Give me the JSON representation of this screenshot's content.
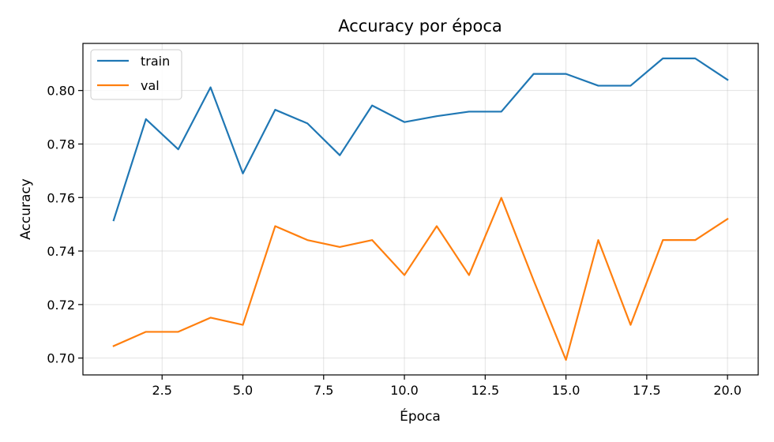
{
  "chart_data": {
    "type": "line",
    "title": "Accuracy por época",
    "xlabel": "Época",
    "ylabel": "Accuracy",
    "x": [
      1,
      2,
      3,
      4,
      5,
      6,
      7,
      8,
      9,
      10,
      11,
      12,
      13,
      14,
      15,
      16,
      17,
      18,
      19,
      20
    ],
    "series": [
      {
        "name": "train",
        "color": "#1f77b4",
        "values": [
          0.7515,
          0.7893,
          0.778,
          0.8012,
          0.769,
          0.7928,
          0.7877,
          0.7758,
          0.7944,
          0.7882,
          0.7904,
          0.7921,
          0.7921,
          0.8062,
          0.8062,
          0.8018,
          0.8018,
          0.812,
          0.812,
          0.804
        ]
      },
      {
        "name": "val",
        "color": "#ff7f0e",
        "values": [
          0.7045,
          0.7098,
          0.7098,
          0.7151,
          0.7124,
          0.7493,
          0.7441,
          0.7415,
          0.7441,
          0.731,
          0.7493,
          0.731,
          0.7599,
          0.729,
          0.6993,
          0.7441,
          0.7124,
          0.7441,
          0.7441,
          0.752
        ]
      }
    ],
    "xlim": [
      0.05,
      20.95
    ],
    "ylim": [
      0.6937,
      0.8176
    ],
    "xticks": [
      2.5,
      5.0,
      7.5,
      10.0,
      12.5,
      15.0,
      17.5,
      20.0
    ],
    "xtick_labels": [
      "2.5",
      "5.0",
      "7.5",
      "10.0",
      "12.5",
      "15.0",
      "17.5",
      "20.0"
    ],
    "yticks": [
      0.7,
      0.72,
      0.74,
      0.76,
      0.78,
      0.8
    ],
    "ytick_labels": [
      "0.70",
      "0.72",
      "0.74",
      "0.76",
      "0.78",
      "0.80"
    ],
    "grid": true,
    "legend_position": "upper-left"
  }
}
